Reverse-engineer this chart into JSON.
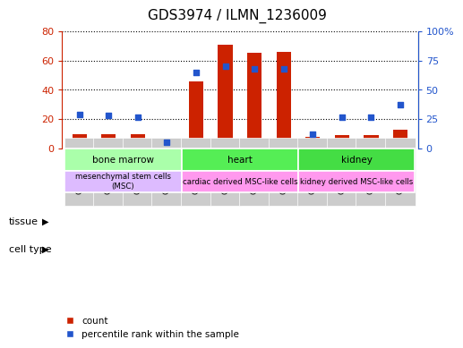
{
  "title": "GDS3974 / ILMN_1236009",
  "samples": [
    "GSM787845",
    "GSM787846",
    "GSM787847",
    "GSM787848",
    "GSM787849",
    "GSM787850",
    "GSM787851",
    "GSM787852",
    "GSM787853",
    "GSM787854",
    "GSM787855",
    "GSM787856"
  ],
  "counts": [
    10,
    10,
    10,
    6,
    46,
    71,
    65,
    66,
    8,
    9,
    9,
    13
  ],
  "percentiles": [
    29,
    28,
    27,
    5,
    65,
    70,
    68,
    68,
    12,
    27,
    27,
    37
  ],
  "count_color": "#CC2200",
  "percentile_color": "#2255CC",
  "ylim_left": [
    0,
    80
  ],
  "ylim_right": [
    0,
    100
  ],
  "yticks_left": [
    0,
    20,
    40,
    60,
    80
  ],
  "ytick_labels_left": [
    "0",
    "20",
    "40",
    "60",
    "80"
  ],
  "yticks_right": [
    0,
    25,
    50,
    75,
    100
  ],
  "ytick_labels_right": [
    "0",
    "25",
    "50",
    "75",
    "100%"
  ],
  "tissue_groups": [
    {
      "label": "bone marrow",
      "start": 0,
      "end": 4,
      "color": "#AAFFAA"
    },
    {
      "label": "heart",
      "start": 4,
      "end": 8,
      "color": "#55EE55"
    },
    {
      "label": "kidney",
      "start": 8,
      "end": 12,
      "color": "#44DD44"
    }
  ],
  "celltype_groups": [
    {
      "label": "mesenchymal stem cells\n(MSC)",
      "start": 0,
      "end": 4,
      "color": "#DDBBFF"
    },
    {
      "label": "cardiac derived MSC-like cells",
      "start": 4,
      "end": 8,
      "color": "#FF99EE"
    },
    {
      "label": "kidney derived MSC-like cells",
      "start": 8,
      "end": 12,
      "color": "#FF99EE"
    }
  ],
  "legend_count_label": "count",
  "legend_percentile_label": "percentile rank within the sample",
  "tissue_label": "tissue",
  "celltype_label": "cell type",
  "bar_width": 0.5,
  "tick_color_left": "#CC2200",
  "tick_color_right": "#2255CC",
  "plot_bg": "#FFFFFF",
  "xticklabel_bg": "#CCCCCC"
}
